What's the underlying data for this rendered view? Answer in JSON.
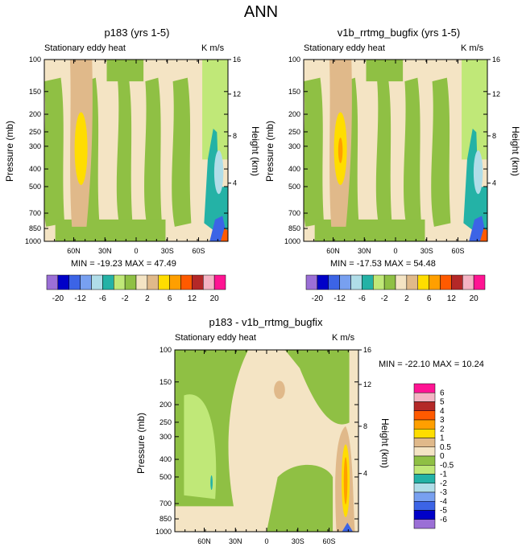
{
  "figure": {
    "title": "ANN",
    "subtitle_left": "Stationary eddy heat",
    "units": "K m/s",
    "ylabel_left": "Pressure (mb)",
    "ylabel_right": "Height (km)"
  },
  "colors": {
    "land": "#e0b98a",
    "cream": "#f4e4c4",
    "green": "#8fc044",
    "lightgreen": "#c0e878",
    "yellow": "#ffdd00",
    "orange": "#ff9f00",
    "teal": "#24b2a6",
    "lightblue": "#b0dde8"
  },
  "chart_data": [
    {
      "type": "contour",
      "title": "p183 (yrs 1-5)",
      "x_tick_labels": [
        "60N",
        "30N",
        "0",
        "30S",
        "60S"
      ],
      "y_tick_labels": [
        "100",
        "150",
        "200",
        "250",
        "300",
        "400",
        "500",
        "700",
        "850",
        "1000"
      ],
      "right_tick_labels": [
        "16",
        "12",
        "8",
        "4"
      ],
      "stats": "MIN = -19.23  MAX =  47.49"
    },
    {
      "type": "contour",
      "title": "v1b_rrtmg_bugfix (yrs 1-5)",
      "x_tick_labels": [
        "60N",
        "30N",
        "0",
        "30S",
        "60S"
      ],
      "y_tick_labels": [
        "100",
        "150",
        "200",
        "250",
        "300",
        "400",
        "500",
        "700",
        "850",
        "1000"
      ],
      "right_tick_labels": [
        "16",
        "12",
        "8",
        "4"
      ],
      "stats": "MIN = -17.53  MAX =  54.48"
    },
    {
      "type": "contour",
      "title": "p183 - v1b_rrtmg_bugfix",
      "x_tick_labels": [
        "60N",
        "30N",
        "0",
        "30S",
        "60S"
      ],
      "y_tick_labels": [
        "100",
        "150",
        "200",
        "250",
        "300",
        "400",
        "500",
        "700",
        "850",
        "1000"
      ],
      "right_tick_labels": [
        "16",
        "12",
        "8",
        "4"
      ],
      "stats": "MIN = -22.10  MAX =  10.24"
    }
  ],
  "colorbar_top": {
    "labels": [
      "-20",
      "-12",
      "-6",
      "-2",
      "2",
      "6",
      "12",
      "20"
    ],
    "colors": [
      "#9b6fd6",
      "#0000c8",
      "#3c64e6",
      "#78a0f0",
      "#b0dde8",
      "#24b2a6",
      "#c0e878",
      "#8fc044",
      "#f4e4c4",
      "#e0b98a",
      "#ffdd00",
      "#ff9f00",
      "#ff5a00",
      "#b42828",
      "#f4b4c4",
      "#ff1493"
    ]
  },
  "colorbar_diff": {
    "labels": [
      "6",
      "5",
      "4",
      "3",
      "2",
      "1",
      "0.5",
      "0",
      "-0.5",
      "-1",
      "-2",
      "-3",
      "-4",
      "-5",
      "-6"
    ],
    "colors": [
      "#ff1493",
      "#f4b4c4",
      "#b42828",
      "#ff5a00",
      "#ff9f00",
      "#ffdd00",
      "#e0b98a",
      "#f4e4c4",
      "#8fc044",
      "#c0e878",
      "#24b2a6",
      "#b0dde8",
      "#78a0f0",
      "#3c64e6",
      "#0000c8",
      "#9b6fd6"
    ]
  }
}
